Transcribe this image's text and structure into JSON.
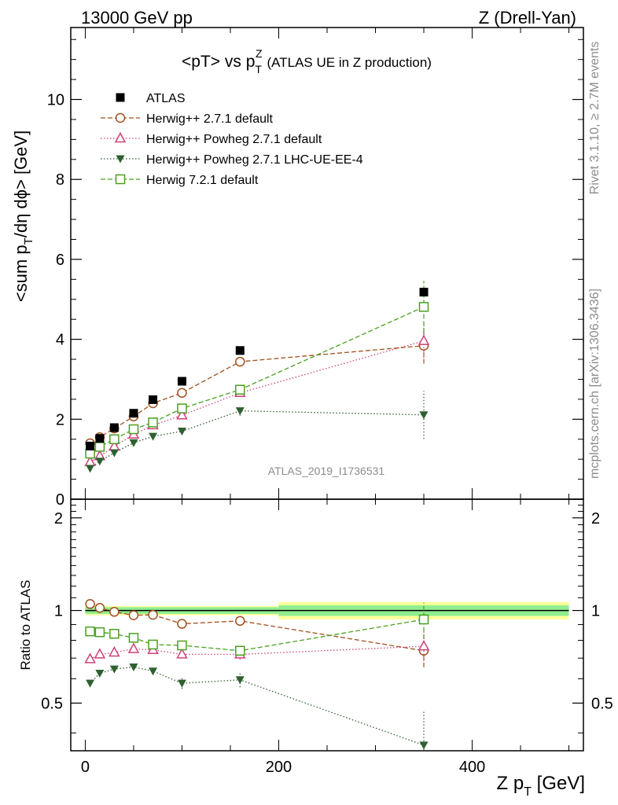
{
  "header": {
    "left": "13000 GeV pp",
    "right": "Z (Drell-Yan)"
  },
  "title": {
    "main": "<pT> vs p",
    "sup": "Z",
    "sub": "T",
    "tail": "(ATLAS UE in Z production)"
  },
  "side_labels": {
    "rivet": "Rivet 3.1.10, ≥ 2.7M events",
    "mcplots": "mcplots.cern.ch [arXiv:1306.3436]"
  },
  "analysis_id": "ATLAS_2019_I1736531",
  "chart_data": [
    {
      "type": "scatter",
      "panel": "main",
      "ylabel": "<sum p_T/dη dϕ> [GeV]",
      "ylabel_parts": {
        "a": "<sum p",
        "sub": "T",
        "b": "/dη dϕ> [GeV]"
      },
      "xlim": [
        -15,
        515
      ],
      "ylim": [
        0,
        11.8
      ],
      "yticks": [
        0,
        2,
        4,
        6,
        8,
        10
      ],
      "ytick_labels": [
        "0",
        "2",
        "4",
        "6",
        "8",
        "10"
      ],
      "grid": false,
      "legend_position": "top-left",
      "series": [
        {
          "name": "ATLAS",
          "color": "#000000",
          "marker": "square-filled",
          "line": "none",
          "x": [
            5,
            15,
            30,
            50,
            70,
            100,
            160,
            350
          ],
          "y": [
            1.33,
            1.52,
            1.79,
            2.15,
            2.49,
            2.95,
            3.72,
            5.18
          ]
        },
        {
          "name": "Herwig++ 2.7.1 default",
          "color": "#a0501e",
          "marker": "circle-open",
          "line": "dashed",
          "x": [
            5,
            15,
            30,
            50,
            70,
            100,
            160,
            350
          ],
          "y": [
            1.4,
            1.55,
            1.77,
            2.07,
            2.4,
            2.66,
            3.44,
            3.84
          ],
          "err": [
            0.02,
            0.02,
            0.02,
            0.03,
            0.04,
            0.05,
            0.12,
            0.45
          ]
        },
        {
          "name": "Herwig++ Powheg 2.7.1 default",
          "color": "#d0407a",
          "marker": "triangle-open",
          "line": "dotted",
          "x": [
            5,
            15,
            30,
            50,
            70,
            100,
            160,
            350
          ],
          "y": [
            0.93,
            1.08,
            1.32,
            1.62,
            1.85,
            2.1,
            2.66,
            3.96
          ],
          "err": [
            0.02,
            0.02,
            0.02,
            0.03,
            0.04,
            0.05,
            0.1,
            0.5
          ]
        },
        {
          "name": "Herwig++ Powheg 2.7.1 LHC-UE-EE-4",
          "color": "#2e6030",
          "marker": "triangle-down-filled",
          "line": "dotted",
          "x": [
            5,
            15,
            30,
            50,
            70,
            100,
            160,
            350
          ],
          "y": [
            0.77,
            0.95,
            1.16,
            1.41,
            1.57,
            1.7,
            2.21,
            2.11
          ],
          "err": [
            0.02,
            0.02,
            0.02,
            0.03,
            0.04,
            0.07,
            0.12,
            0.6
          ]
        },
        {
          "name": "Herwig 7.2.1 default",
          "color": "#4aa020",
          "marker": "square-open",
          "line": "dashed",
          "x": [
            5,
            15,
            30,
            50,
            70,
            100,
            160,
            350
          ],
          "y": [
            1.14,
            1.31,
            1.5,
            1.75,
            1.92,
            2.27,
            2.74,
            4.81
          ],
          "err": [
            0.02,
            0.02,
            0.02,
            0.03,
            0.04,
            0.05,
            0.1,
            0.65
          ]
        }
      ]
    },
    {
      "type": "scatter",
      "panel": "ratio",
      "ylabel": "Ratio to ATLAS",
      "xlabel": "Z p_T [GeV]",
      "xlabel_parts": {
        "a": "Z p",
        "sub": "T",
        "b": " [GeV]"
      },
      "xlim": [
        -15,
        515
      ],
      "ylim": [
        0.35,
        2.3
      ],
      "log_y": true,
      "xticks": [
        0,
        200,
        400
      ],
      "xtick_labels": [
        "0",
        "200",
        "400"
      ],
      "yticks": [
        0.5,
        1,
        2
      ],
      "ytick_labels": [
        "0.5",
        "1",
        "2"
      ],
      "grid": false,
      "reference_band": {
        "bins": [
          [
            0,
            200
          ],
          [
            200,
            500
          ]
        ],
        "inner": [
          [
            0.975,
            1.025
          ],
          [
            0.96,
            1.04
          ]
        ],
        "outer": [
          [
            0.965,
            1.035
          ],
          [
            0.935,
            1.065
          ]
        ]
      },
      "series": [
        {
          "name": "Herwig++ 2.7.1 default",
          "x": [
            5,
            15,
            30,
            50,
            70,
            100,
            160,
            350
          ],
          "y": [
            1.05,
            1.02,
            0.99,
            0.965,
            0.968,
            0.905,
            0.925,
            0.74
          ]
        },
        {
          "name": "Herwig++ Powheg 2.7.1 default",
          "x": [
            5,
            15,
            30,
            50,
            70,
            100,
            160,
            350
          ],
          "y": [
            0.695,
            0.72,
            0.73,
            0.75,
            0.745,
            0.72,
            0.72,
            0.765
          ]
        },
        {
          "name": "Herwig++ Powheg 2.7.1 LHC-UE-EE-4",
          "x": [
            5,
            15,
            30,
            50,
            70,
            100,
            160,
            350
          ],
          "y": [
            0.58,
            0.625,
            0.645,
            0.655,
            0.635,
            0.58,
            0.595,
            0.365
          ]
        },
        {
          "name": "Herwig 7.2.1 default",
          "x": [
            5,
            15,
            30,
            50,
            70,
            100,
            160,
            350
          ],
          "y": [
            0.855,
            0.85,
            0.84,
            0.815,
            0.775,
            0.77,
            0.74,
            0.935
          ]
        }
      ]
    }
  ]
}
